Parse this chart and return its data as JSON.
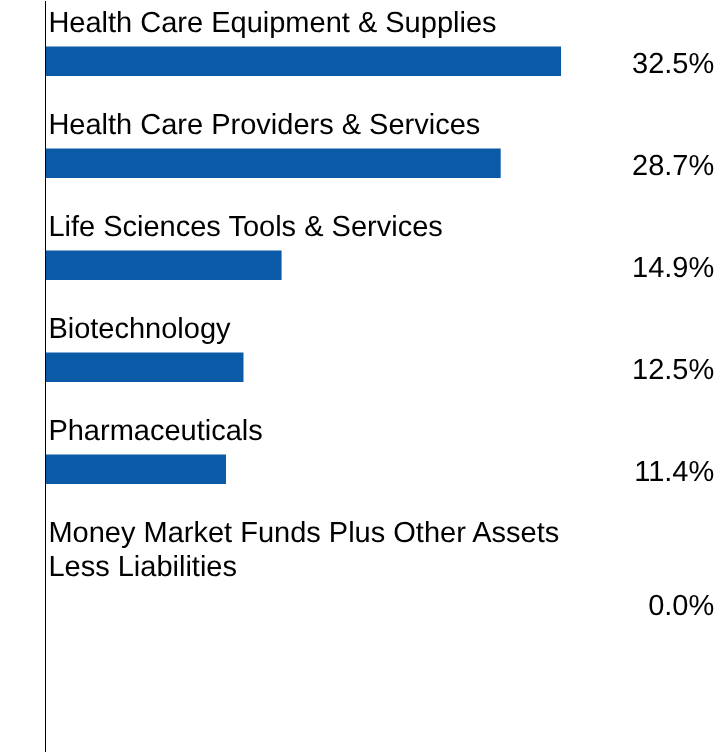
{
  "chart_data": {
    "type": "bar",
    "orientation": "horizontal",
    "categories": [
      "Health Care Equipment & Supplies",
      "Health Care Providers & Services",
      "Life Sciences Tools & Services",
      "Biotechnology",
      "Pharmaceuticals",
      "Money Market Funds Plus Other Assets Less Liabilities"
    ],
    "values": [
      32.5,
      28.7,
      14.9,
      12.5,
      11.4,
      0.0
    ],
    "value_labels": [
      "32.5%",
      "28.7%",
      "14.9%",
      "12.5%",
      "11.4%",
      "0.0%"
    ],
    "color": "#0b5aa8"
  }
}
